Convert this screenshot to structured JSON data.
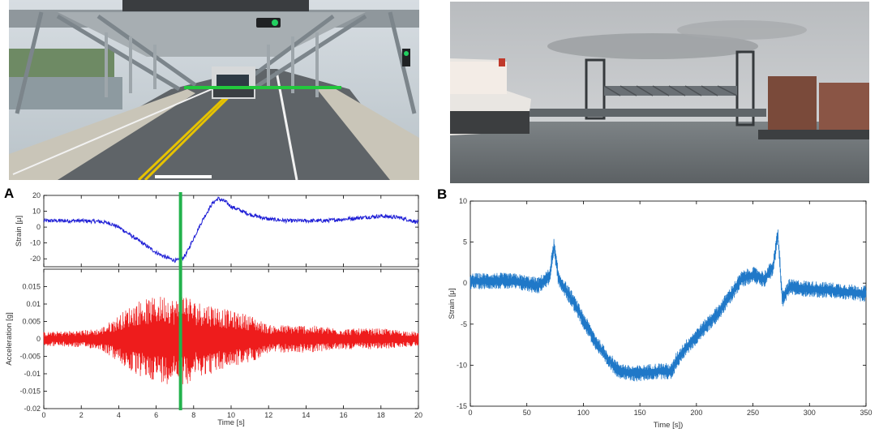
{
  "panels": {
    "a_label": "A",
    "b_label": "B"
  },
  "photos": {
    "a": {
      "icon": "bridge-deck-truck-photo"
    },
    "b": {
      "icon": "lift-bridge-ship-photo"
    }
  },
  "colors": {
    "strain_a": "#1f1fd6",
    "accel_a": "#ee1c1c",
    "marker": "#22b24c",
    "strain_b": "#1f78c8"
  },
  "chart_data": [
    {
      "type": "line",
      "panel": "A-top",
      "ylabel": "Strain [μ]",
      "xlabel": "",
      "xlim": [
        0,
        20
      ],
      "ylim": [
        -25,
        20
      ],
      "yticks": [
        20,
        10,
        0,
        -10,
        -20
      ],
      "xticks": [
        0,
        2,
        4,
        6,
        8,
        10,
        12,
        14,
        16,
        18,
        20
      ],
      "marker_x": 7.3,
      "series": [
        {
          "x": [
            0,
            1,
            2,
            3,
            3.5,
            4,
            4.5,
            5,
            5.5,
            6,
            6.5,
            7,
            7.3,
            7.6,
            8,
            8.5,
            9,
            9.3,
            9.7,
            10,
            11,
            12,
            13,
            14,
            15,
            16,
            17,
            18,
            19,
            20
          ],
          "y": [
            4,
            4,
            4,
            3.5,
            2.5,
            0,
            -4,
            -8,
            -12,
            -16,
            -19,
            -21,
            -21,
            -17,
            -7,
            5,
            15,
            18,
            16,
            13,
            8,
            5,
            4,
            4,
            4,
            5,
            6,
            7,
            6,
            3
          ],
          "noise": 1.2
        }
      ]
    },
    {
      "type": "line",
      "panel": "A-bottom",
      "ylabel": "Acceleration [g]",
      "xlabel": "Time [s]",
      "xlim": [
        0,
        20
      ],
      "ylim": [
        -0.02,
        0.02
      ],
      "yticks": [
        0.015,
        0.01,
        0.005,
        0,
        -0.005,
        -0.01,
        -0.015,
        -0.02
      ],
      "xticks": [
        0,
        2,
        4,
        6,
        8,
        10,
        12,
        14,
        16,
        18,
        20
      ],
      "marker_x": 7.3,
      "series": [
        {
          "envelope_x": [
            0,
            2,
            3,
            3.8,
            4.5,
            5,
            6,
            6.6,
            7,
            7.5,
            8,
            9,
            10,
            11,
            12,
            14,
            16,
            18,
            20
          ],
          "envelope_y": [
            0.002,
            0.0025,
            0.003,
            0.006,
            0.009,
            0.011,
            0.012,
            0.013,
            0.011,
            0.014,
            0.011,
            0.01,
            0.008,
            0.007,
            0.004,
            0.004,
            0.003,
            0.003,
            0.002
          ]
        }
      ]
    },
    {
      "type": "line",
      "panel": "B",
      "ylabel": "Strain [μ]",
      "xlabel": "Time [s])",
      "xlim": [
        0,
        350
      ],
      "ylim": [
        -15,
        10
      ],
      "yticks": [
        10,
        5,
        0,
        -5,
        -10,
        -15
      ],
      "xticks": [
        0,
        50,
        100,
        150,
        200,
        250,
        300,
        350
      ],
      "series": [
        {
          "x": [
            0,
            20,
            40,
            60,
            70,
            74,
            78,
            90,
            100,
            110,
            120,
            130,
            140,
            150,
            160,
            170,
            178,
            182,
            190,
            200,
            210,
            220,
            230,
            240,
            250,
            260,
            268,
            272,
            276,
            282,
            300,
            320,
            350
          ],
          "y": [
            0.2,
            0.3,
            0.2,
            -0.3,
            0.8,
            4.5,
            0.5,
            -2,
            -4.5,
            -7,
            -9,
            -10.5,
            -11,
            -11,
            -10.8,
            -10.7,
            -10.8,
            -9.5,
            -8,
            -6.5,
            -5,
            -3.5,
            -1.5,
            0.5,
            1,
            0.5,
            2,
            6,
            -2,
            -0.5,
            -0.7,
            -0.9,
            -1.3
          ],
          "noise": 1.0
        }
      ]
    }
  ]
}
